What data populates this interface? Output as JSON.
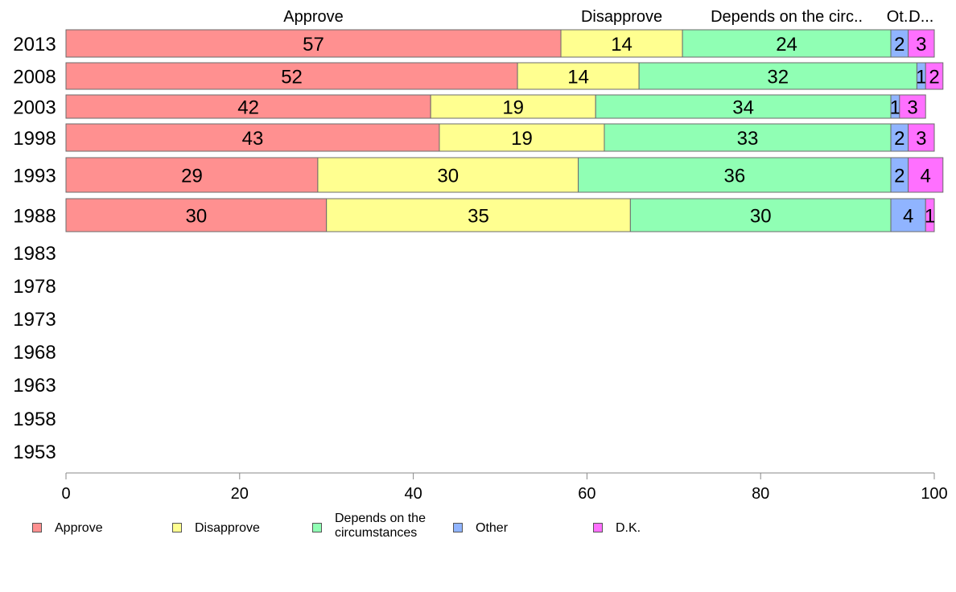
{
  "chart_data": {
    "type": "bar",
    "orientation": "horizontal",
    "stacked": true,
    "categories": [
      "2013",
      "2008",
      "2003",
      "1998",
      "1993",
      "1988",
      "1983",
      "1978",
      "1973",
      "1968",
      "1963",
      "1958",
      "1953"
    ],
    "series": [
      {
        "name": "Approve",
        "color": "#ff9090",
        "values": [
          57,
          52,
          42,
          43,
          29,
          30,
          null,
          null,
          null,
          null,
          null,
          null,
          null
        ]
      },
      {
        "name": "Disapprove",
        "color": "#ffff90",
        "values": [
          14,
          14,
          19,
          19,
          30,
          35,
          null,
          null,
          null,
          null,
          null,
          null,
          null
        ]
      },
      {
        "name": "Depends on the circumstances",
        "color": "#90ffb4",
        "values": [
          24,
          32,
          34,
          33,
          36,
          30,
          null,
          null,
          null,
          null,
          null,
          null,
          null
        ]
      },
      {
        "name": "Other",
        "color": "#90b4ff",
        "values": [
          2,
          1,
          1,
          2,
          2,
          4,
          null,
          null,
          null,
          null,
          null,
          null,
          null
        ]
      },
      {
        "name": "D.K.",
        "color": "#ff70ff",
        "values": [
          3,
          2,
          3,
          3,
          4,
          1,
          null,
          null,
          null,
          null,
          null,
          null,
          null
        ]
      }
    ],
    "column_headers": [
      "Approve",
      "Disapprove",
      "Depends on the circ..",
      "Ot..",
      "D..."
    ],
    "legend_labels": [
      "Approve",
      "Disapprove",
      "Depends on the\ncircumstances",
      "Other",
      "D.K."
    ],
    "x_ticks": [
      "0",
      "20",
      "40",
      "60",
      "80",
      "100"
    ],
    "xlim": [
      0,
      100
    ],
    "legend_position": "bottom",
    "grid": false,
    "title": "",
    "xlabel": "",
    "ylabel": ""
  }
}
